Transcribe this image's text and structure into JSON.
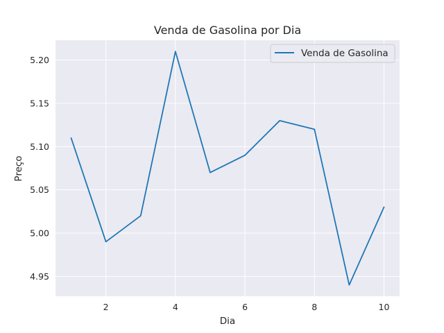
{
  "chart_data": {
    "type": "line",
    "title": "Venda de Gasolina por Dia",
    "xlabel": "Dia",
    "ylabel": "Preço",
    "x": [
      1,
      2,
      3,
      4,
      5,
      6,
      7,
      8,
      9,
      10
    ],
    "series": [
      {
        "name": "Venda de Gasolina",
        "values": [
          5.11,
          4.99,
          5.02,
          5.21,
          5.07,
          5.09,
          5.13,
          5.12,
          4.94,
          5.03
        ],
        "color": "#1f77b4"
      }
    ],
    "xlim": [
      0.55,
      10.45
    ],
    "ylim": [
      4.927,
      5.223
    ],
    "xticks": [
      2,
      4,
      6,
      8,
      10
    ],
    "xtick_labels": [
      "2",
      "4",
      "6",
      "8",
      "10"
    ],
    "yticks": [
      4.95,
      5.0,
      5.05,
      5.1,
      5.15,
      5.2
    ],
    "ytick_labels": [
      "4.95",
      "5.00",
      "5.05",
      "5.10",
      "5.15",
      "5.20"
    ],
    "grid": true,
    "legend_position": "top-right",
    "background_color": "#eaeaf2",
    "grid_color": "#ffffff"
  }
}
